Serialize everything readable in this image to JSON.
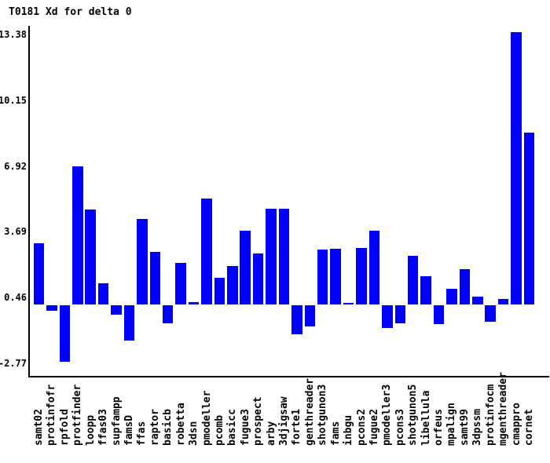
{
  "title": "T0181 Xd for delta 0",
  "chart_data": {
    "type": "bar",
    "title": "T0181 Xd for delta 0",
    "xlabel": "",
    "ylabel": "",
    "ylim": [
      -2.77,
      13.38
    ],
    "yticks": [
      13.38,
      10.15,
      6.92,
      3.69,
      0.46,
      -2.77
    ],
    "grid": false,
    "legend": "none",
    "bar_color": "#0000ff",
    "axis_color": "#000000",
    "background_color": "#ffffff",
    "categories": [
      "samt02",
      "protinfofr",
      "rpfold",
      "protfinder",
      "loopp",
      "ffas03",
      "supfampp",
      "famsD",
      "ffas",
      "raptor",
      "basicb",
      "robetta",
      "3dsn",
      "pmodeller",
      "pcomb",
      "basicc",
      "fugue3",
      "prospect",
      "arby",
      "3djigsaw",
      "forte1",
      "genthreader",
      "shotgunon3",
      "fams",
      "inbgu",
      "pcons2",
      "fugue2",
      "pmodeller3",
      "pcons3",
      "shotgunon5",
      "libellula",
      "orfeus",
      "mpalign",
      "samt99",
      "3dpssm",
      "protinfocm",
      "mgenthreader",
      "cmappro",
      "cornet"
    ],
    "values": [
      3.0,
      -0.27,
      -2.77,
      6.8,
      4.67,
      1.05,
      -0.45,
      -1.71,
      4.21,
      2.6,
      -0.88,
      2.06,
      0.11,
      5.22,
      1.32,
      1.9,
      3.63,
      2.52,
      4.7,
      4.7,
      -1.43,
      -1.03,
      2.7,
      2.74,
      0.1,
      2.78,
      3.63,
      -1.12,
      -0.88,
      2.39,
      1.39,
      -0.91,
      0.78,
      1.73,
      0.38,
      -0.81,
      0.29,
      13.4,
      8.45
    ]
  }
}
